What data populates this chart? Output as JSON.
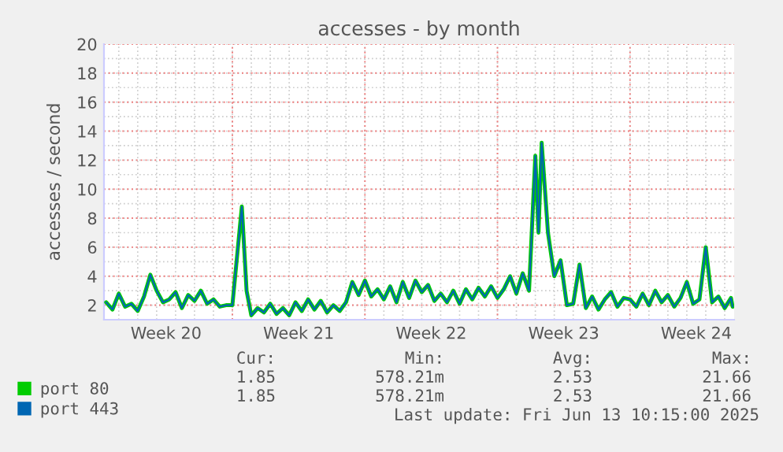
{
  "chart_data": {
    "type": "line",
    "title": "accesses - by month",
    "ylabel": "accesses / second",
    "x": [
      "2025-05-11T08:00",
      "2025-05-11T16:00",
      "2025-05-12T00:00",
      "2025-05-12T08:00",
      "2025-05-12T16:00",
      "2025-05-13T00:00",
      "2025-05-13T08:00",
      "2025-05-13T16:00",
      "2025-05-14T00:00",
      "2025-05-14T08:00",
      "2025-05-14T16:00",
      "2025-05-15T00:00",
      "2025-05-15T08:00",
      "2025-05-15T16:00",
      "2025-05-16T00:00",
      "2025-05-16T08:00",
      "2025-05-16T16:00",
      "2025-05-17T00:00",
      "2025-05-17T08:00",
      "2025-05-17T16:00",
      "2025-05-18T00:00",
      "2025-05-18T12:00",
      "2025-05-18T18:00",
      "2025-05-19T00:00",
      "2025-05-19T08:00",
      "2025-05-19T16:00",
      "2025-05-20T00:00",
      "2025-05-20T08:00",
      "2025-05-20T16:00",
      "2025-05-21T00:00",
      "2025-05-21T08:00",
      "2025-05-21T16:00",
      "2025-05-22T00:00",
      "2025-05-22T08:00",
      "2025-05-22T16:00",
      "2025-05-23T00:00",
      "2025-05-23T08:00",
      "2025-05-23T16:00",
      "2025-05-24T00:00",
      "2025-05-24T08:00",
      "2025-05-24T16:00",
      "2025-05-25T00:00",
      "2025-05-25T08:00",
      "2025-05-25T16:00",
      "2025-05-26T00:00",
      "2025-05-26T08:00",
      "2025-05-26T16:00",
      "2025-05-27T00:00",
      "2025-05-27T08:00",
      "2025-05-27T16:00",
      "2025-05-28T00:00",
      "2025-05-28T08:00",
      "2025-05-28T16:00",
      "2025-05-29T00:00",
      "2025-05-29T08:00",
      "2025-05-29T16:00",
      "2025-05-30T00:00",
      "2025-05-30T08:00",
      "2025-05-30T16:00",
      "2025-05-31T00:00",
      "2025-05-31T08:00",
      "2025-05-31T16:00",
      "2025-06-01T00:00",
      "2025-06-01T08:00",
      "2025-06-01T16:00",
      "2025-06-02T00:00",
      "2025-06-02T08:00",
      "2025-06-02T16:00",
      "2025-06-03T00:00",
      "2025-06-03T04:00",
      "2025-06-03T08:00",
      "2025-06-03T16:00",
      "2025-06-04T00:00",
      "2025-06-04T08:00",
      "2025-06-04T16:00",
      "2025-06-05T00:00",
      "2025-06-05T08:00",
      "2025-06-05T16:00",
      "2025-06-06T00:00",
      "2025-06-06T08:00",
      "2025-06-06T16:00",
      "2025-06-07T00:00",
      "2025-06-07T08:00",
      "2025-06-07T16:00",
      "2025-06-08T00:00",
      "2025-06-08T08:00",
      "2025-06-08T16:00",
      "2025-06-09T00:00",
      "2025-06-09T08:00",
      "2025-06-09T16:00",
      "2025-06-10T00:00",
      "2025-06-10T08:00",
      "2025-06-10T16:00",
      "2025-06-11T00:00",
      "2025-06-11T08:00",
      "2025-06-11T16:00",
      "2025-06-12T00:00",
      "2025-06-12T08:00",
      "2025-06-12T16:00",
      "2025-06-13T00:00",
      "2025-06-13T08:00",
      "2025-06-13T10:00"
    ],
    "series": [
      {
        "name": "port 80",
        "color": "#00cc00",
        "values": [
          2.2,
          1.7,
          2.8,
          1.9,
          2.1,
          1.6,
          2.6,
          4.1,
          3.0,
          2.2,
          2.4,
          2.9,
          1.8,
          2.7,
          2.3,
          3.0,
          2.1,
          2.4,
          1.9,
          2.0,
          2.0,
          8.8,
          3.0,
          1.3,
          1.8,
          1.5,
          2.1,
          1.4,
          1.8,
          1.3,
          2.2,
          1.6,
          2.4,
          1.7,
          2.3,
          1.5,
          2.0,
          1.6,
          2.2,
          3.6,
          2.7,
          3.7,
          2.6,
          3.1,
          2.4,
          3.3,
          2.2,
          3.6,
          2.5,
          3.7,
          2.9,
          3.4,
          2.3,
          2.8,
          2.2,
          3.0,
          2.1,
          3.1,
          2.4,
          3.2,
          2.6,
          3.3,
          2.5,
          3.1,
          4.0,
          2.8,
          4.2,
          3.0,
          12.3,
          7.0,
          13.2,
          7.0,
          4.0,
          5.1,
          2.0,
          2.1,
          4.8,
          1.8,
          2.6,
          1.7,
          2.4,
          2.9,
          1.9,
          2.5,
          2.4,
          1.9,
          2.8,
          2.0,
          3.0,
          2.2,
          2.7,
          1.9,
          2.5,
          3.6,
          2.1,
          2.4,
          6.0,
          2.2,
          2.6,
          1.8,
          2.5,
          1.9
        ]
      },
      {
        "name": "port 443",
        "color": "#0066b3",
        "values": [
          2.2,
          1.7,
          2.8,
          1.9,
          2.1,
          1.6,
          2.6,
          4.1,
          3.0,
          2.2,
          2.4,
          2.9,
          1.8,
          2.7,
          2.3,
          3.0,
          2.1,
          2.4,
          1.9,
          2.0,
          2.0,
          8.8,
          3.0,
          1.3,
          1.8,
          1.5,
          2.1,
          1.4,
          1.8,
          1.3,
          2.2,
          1.6,
          2.4,
          1.7,
          2.3,
          1.5,
          2.0,
          1.6,
          2.2,
          3.6,
          2.7,
          3.7,
          2.6,
          3.1,
          2.4,
          3.3,
          2.2,
          3.6,
          2.5,
          3.7,
          2.9,
          3.4,
          2.3,
          2.8,
          2.2,
          3.0,
          2.1,
          3.1,
          2.4,
          3.2,
          2.6,
          3.3,
          2.5,
          3.1,
          4.0,
          2.8,
          4.2,
          3.0,
          12.3,
          7.0,
          13.2,
          7.0,
          4.0,
          5.1,
          2.0,
          2.1,
          4.8,
          1.8,
          2.6,
          1.7,
          2.4,
          2.9,
          1.9,
          2.5,
          2.4,
          1.9,
          2.8,
          2.0,
          3.0,
          2.2,
          2.7,
          1.9,
          2.5,
          3.6,
          2.1,
          2.4,
          6.0,
          2.2,
          2.6,
          1.8,
          2.5,
          1.9
        ]
      }
    ],
    "xlim": [
      "2025-05-11T05:15",
      "2025-06-13T12:00"
    ],
    "xticks": [
      {
        "value": "2025-05-14T12:00",
        "label": "Week 20"
      },
      {
        "value": "2025-05-18",
        "label": null
      },
      {
        "value": "2025-05-21T12:00",
        "label": "Week 21"
      },
      {
        "value": "2025-05-25",
        "label": null
      },
      {
        "value": "2025-05-28T12:00",
        "label": "Week 22"
      },
      {
        "value": "2025-06-01",
        "label": null
      },
      {
        "value": "2025-06-04T12:00",
        "label": "Week 23"
      },
      {
        "value": "2025-06-08",
        "label": null
      },
      {
        "value": "2025-06-11T12:00",
        "label": "Week 24"
      }
    ],
    "ylim": [
      1,
      20
    ],
    "yticks": [
      2,
      4,
      6,
      8,
      10,
      12,
      14,
      16,
      18,
      20
    ],
    "grid": true,
    "legend": "bottom",
    "marker": "none",
    "line_style": "solid",
    "annotations": [
      "Cur:",
      "Min:",
      "Avg:",
      "Max:",
      "1.85",
      "578.21m",
      "2.53",
      "21.66",
      "1.85",
      "578.21m",
      "2.53",
      "21.66",
      "Last update: Fri Jun 13 10:15:00 2025"
    ]
  }
}
